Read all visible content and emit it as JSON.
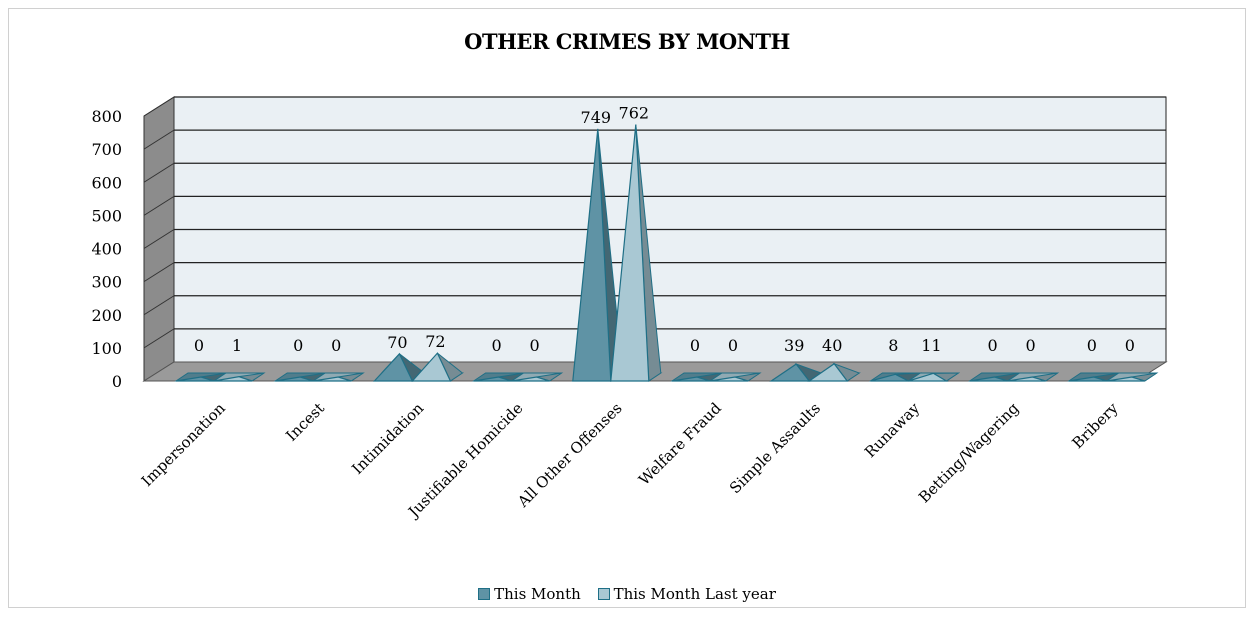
{
  "chart_data": {
    "type": "area",
    "title": "OTHER CRIMES BY MONTH",
    "categories": [
      "Impersonation",
      "Incest",
      "Intimidation",
      "Justifiable Homicide",
      "All Other Offenses",
      "Welfare Fraud",
      "Simple Assaults",
      "Runaway",
      "Betting/Wagering",
      "Bribery"
    ],
    "series": [
      {
        "name": "This Month",
        "values": [
          0,
          0,
          70,
          0,
          749,
          0,
          39,
          8,
          0,
          0
        ],
        "color": "#5f93a5"
      },
      {
        "name": "This Month Last year",
        "values": [
          1,
          0,
          72,
          0,
          762,
          0,
          40,
          11,
          0,
          0
        ],
        "color": "#a9c8d3"
      }
    ],
    "ylim": [
      0,
      800
    ],
    "yticks": [
      0,
      100,
      200,
      300,
      400,
      500,
      600,
      700,
      800
    ],
    "grid": true,
    "legend_position": "bottom",
    "three_d": true
  }
}
